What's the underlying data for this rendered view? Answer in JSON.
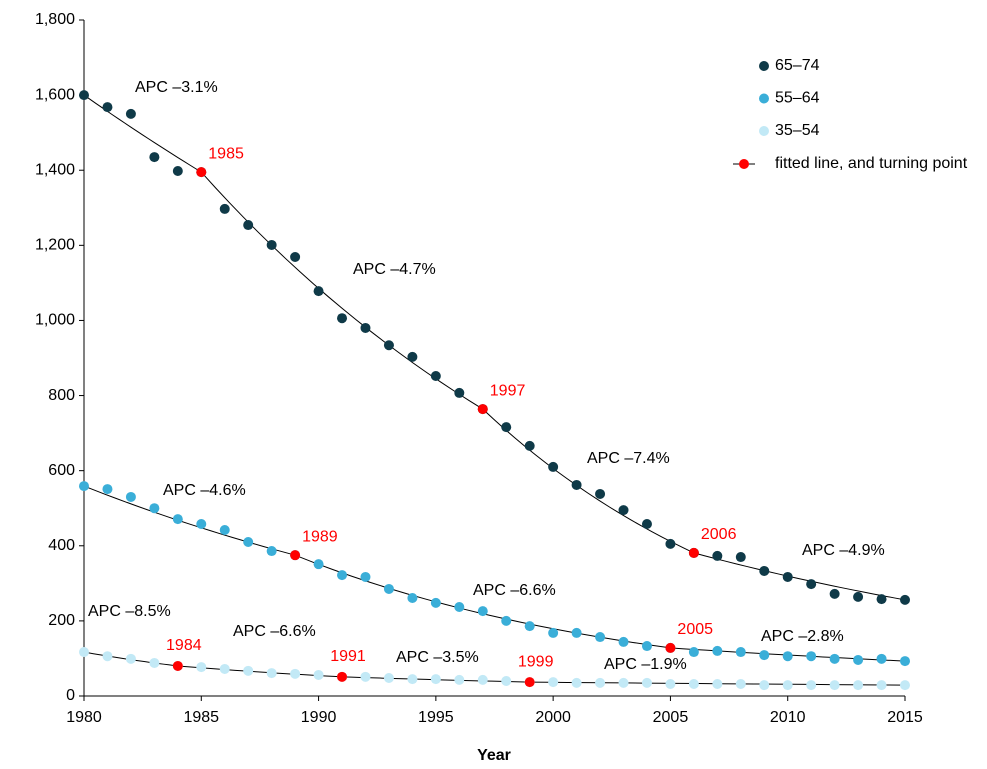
{
  "chart_data": {
    "type": "scatter",
    "x_label": "Year",
    "x": [
      1980,
      1981,
      1982,
      1983,
      1984,
      1985,
      1986,
      1987,
      1988,
      1989,
      1990,
      1991,
      1992,
      1993,
      1994,
      1995,
      1996,
      1997,
      1998,
      1999,
      2000,
      2001,
      2002,
      2003,
      2004,
      2005,
      2006,
      2007,
      2008,
      2009,
      2010,
      2011,
      2012,
      2013,
      2014,
      2015
    ],
    "xlim": [
      1980,
      2015
    ],
    "xticks": [
      1980,
      1985,
      1990,
      1995,
      2000,
      2005,
      2010,
      2015
    ],
    "ylim": [
      0,
      1800
    ],
    "yticks": [
      0,
      200,
      400,
      600,
      800,
      {
        "value": 1000,
        "label": "1,000"
      },
      {
        "value": 1200,
        "label": "1,200"
      },
      {
        "value": 1400,
        "label": "1,400"
      },
      {
        "value": 1600,
        "label": "1,600"
      },
      {
        "value": 1800,
        "label": "1,800"
      }
    ],
    "fit_legend": "fitted line, and turning point",
    "fit_color": "#000000",
    "turning_point_color": "#ff0000",
    "series": [
      {
        "name": "65–74",
        "color": "#0f3a48",
        "values": [
          1600,
          1568,
          1550,
          1435,
          1398,
          1395,
          1297,
          1254,
          1201,
          1169,
          1078,
          1006,
          980,
          934,
          903,
          852,
          807,
          764,
          716,
          666,
          610,
          562,
          538,
          495,
          458,
          405,
          381,
          373,
          370,
          333,
          317,
          298,
          272,
          264,
          258,
          256
        ],
        "fit_x": [
          1980,
          1985,
          1997,
          2006,
          2015
        ],
        "fit_values": [
          1600,
          1395,
          764,
          381,
          256
        ],
        "apc_labels": [
          "APC –3.1%",
          "APC –4.7%",
          "APC –7.4%",
          "APC –4.9%"
        ]
      },
      {
        "name": "55–64",
        "color": "#3aaed8",
        "values": [
          559,
          551,
          530,
          500,
          471,
          458,
          442,
          410,
          386,
          375,
          351,
          322,
          317,
          285,
          261,
          248,
          237,
          226,
          200,
          186,
          168,
          168,
          157,
          144,
          133,
          128,
          117,
          120,
          117,
          109,
          106,
          106,
          99,
          96,
          99,
          93
        ],
        "fit_x": [
          1980,
          1989,
          2005,
          2015
        ],
        "fit_values": [
          559,
          375,
          128,
          93
        ],
        "apc_labels": [
          "APC –4.6%",
          "APC –6.6%",
          "APC –2.8%"
        ]
      },
      {
        "name": "35–54",
        "color": "#c2e9f6",
        "values": [
          117,
          106,
          99,
          88,
          80,
          77,
          72,
          67,
          61,
          59,
          56,
          51,
          51,
          48,
          45,
          45,
          43,
          43,
          40,
          37,
          37,
          35,
          35,
          35,
          35,
          32,
          32,
          32,
          32,
          29,
          29,
          29,
          29,
          29,
          29,
          29
        ],
        "fit_x": [
          1980,
          1984,
          1991,
          1999,
          2015
        ],
        "fit_values": [
          117,
          80,
          51,
          37,
          29
        ],
        "apc_labels": [
          "APC –8.5%",
          "APC –6.6%",
          "APC –3.5%",
          "APC –1.9%"
        ]
      }
    ]
  }
}
